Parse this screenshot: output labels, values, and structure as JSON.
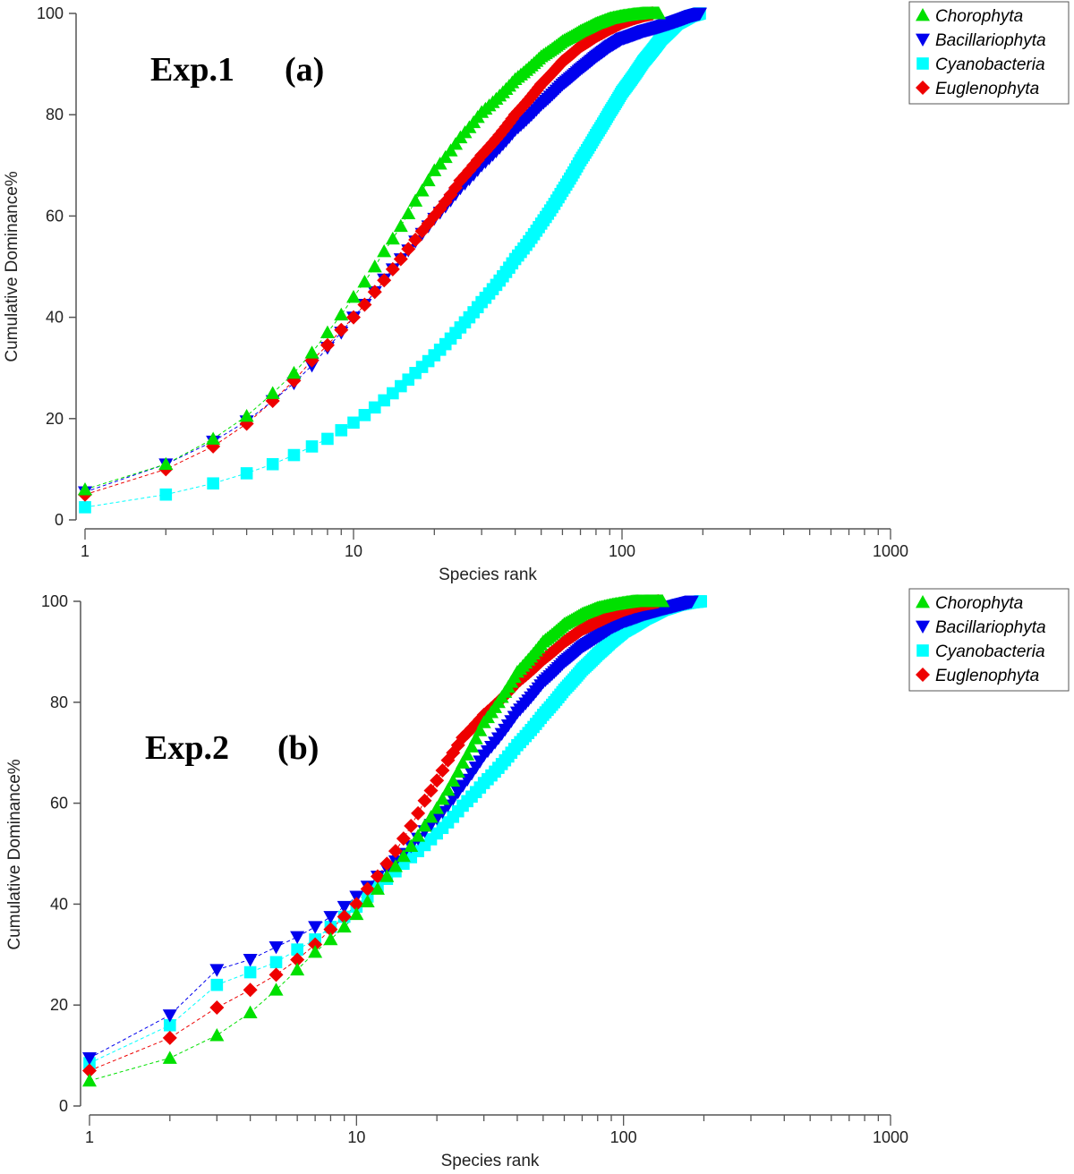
{
  "chart_data": [
    {
      "type": "scatter",
      "panel": "a",
      "label_exp": "Exp.1",
      "label_panel": "(a)",
      "xlabel": "Species rank",
      "ylabel": "Cumulative Dominance%",
      "xscale": "log",
      "xlim": [
        1,
        1000
      ],
      "ylim": [
        0,
        100
      ],
      "xticks": [
        "1",
        "10",
        "100",
        "1000"
      ],
      "yticks": [
        "0",
        "20",
        "40",
        "60",
        "80",
        "100"
      ],
      "legend_position": "top-right",
      "series": [
        {
          "name": "Chorophyta",
          "color": "#00e000",
          "marker": "triangle-up",
          "x": [
            1,
            2,
            3,
            4,
            5,
            6,
            7,
            8,
            9,
            10,
            11,
            12,
            13,
            14,
            15,
            16,
            17,
            18,
            19,
            20,
            25,
            30,
            40,
            50,
            60,
            70,
            80,
            90,
            100,
            110,
            120,
            130,
            137
          ],
          "y": [
            6,
            11,
            16,
            20.5,
            25,
            29,
            33,
            37,
            40.5,
            44,
            47,
            50,
            53,
            55.5,
            58,
            60.5,
            63,
            65,
            67,
            69,
            75.5,
            80.5,
            87,
            91.5,
            94.5,
            96.5,
            98,
            99,
            99.5,
            99.8,
            100,
            100,
            100
          ]
        },
        {
          "name": "Bacillariophyta",
          "color": "#0000ee",
          "marker": "triangle-down",
          "x": [
            1,
            2,
            3,
            4,
            5,
            6,
            7,
            8,
            9,
            10,
            11,
            12,
            13,
            14,
            15,
            17,
            20,
            25,
            30,
            40,
            50,
            60,
            70,
            80,
            90,
            100,
            120,
            140,
            160,
            180,
            195
          ],
          "y": [
            5.5,
            11,
            15.5,
            19.5,
            23.5,
            27,
            30.5,
            34,
            37,
            40,
            42.5,
            45,
            47.5,
            49.5,
            51.5,
            55,
            59.5,
            65.5,
            70,
            77,
            82,
            86,
            89,
            91.5,
            93.5,
            95,
            96.5,
            97.5,
            98.5,
            99.5,
            100
          ]
        },
        {
          "name": "Cyanobacteria",
          "color": "#00ffff",
          "marker": "square",
          "x": [
            1,
            2,
            3,
            4,
            5,
            6,
            7,
            8,
            9,
            10,
            11,
            12,
            13,
            14,
            15,
            16,
            17,
            18,
            20,
            25,
            30,
            40,
            50,
            60,
            70,
            80,
            90,
            100,
            120,
            140,
            160,
            180,
            195
          ],
          "y": [
            2.5,
            5,
            7.2,
            9.2,
            11,
            12.8,
            14.5,
            16,
            17.7,
            19.2,
            20.7,
            22.2,
            23.6,
            25,
            26.4,
            27.7,
            29,
            30.2,
            32.5,
            38,
            43,
            51.5,
            58.5,
            65,
            71,
            76,
            80.5,
            84.5,
            90.5,
            95,
            98,
            99.5,
            100
          ]
        },
        {
          "name": "Euglenophyta",
          "color": "#ee0000",
          "marker": "diamond",
          "x": [
            1,
            2,
            3,
            4,
            5,
            6,
            7,
            8,
            9,
            10,
            11,
            12,
            13,
            14,
            15,
            16,
            17,
            18,
            20,
            25,
            30,
            40,
            50,
            60,
            70,
            80,
            90,
            100,
            110,
            120,
            130
          ],
          "y": [
            5,
            10,
            14.5,
            19,
            23.5,
            27.5,
            31.5,
            34.5,
            37.5,
            40,
            42.5,
            45,
            47.3,
            49.5,
            51.5,
            53.5,
            55.3,
            57,
            60,
            67,
            72,
            80,
            86,
            90.5,
            93.5,
            95.5,
            97,
            98.2,
            99,
            99.6,
            100
          ]
        }
      ]
    },
    {
      "type": "scatter",
      "panel": "b",
      "label_exp": "Exp.2",
      "label_panel": "(b)",
      "xlabel": "Species rank",
      "ylabel": "Cumulative Dominance%",
      "xscale": "log",
      "xlim": [
        1,
        1000
      ],
      "ylim": [
        0,
        100
      ],
      "xticks": [
        "1",
        "10",
        "100",
        "1000"
      ],
      "yticks": [
        "0",
        "20",
        "40",
        "60",
        "80",
        "100"
      ],
      "legend_position": "top-right",
      "series": [
        {
          "name": "Chorophyta",
          "color": "#00e000",
          "marker": "triangle-up",
          "x": [
            1,
            2,
            3,
            4,
            5,
            6,
            7,
            8,
            9,
            10,
            11,
            12,
            13,
            14,
            15,
            16,
            17,
            18,
            20,
            25,
            30,
            40,
            50,
            60,
            70,
            80,
            90,
            100,
            110,
            120,
            130,
            140
          ],
          "y": [
            5,
            9.5,
            14,
            18.5,
            23,
            27,
            30.5,
            33,
            35.5,
            38,
            40.5,
            43,
            45.5,
            47.5,
            49.5,
            51.5,
            53.5,
            55.5,
            59,
            68,
            76,
            86,
            92,
            95.5,
            97.5,
            98.7,
            99.3,
            99.7,
            100,
            100,
            100,
            100
          ]
        },
        {
          "name": "Bacillariophyta",
          "color": "#0000ee",
          "marker": "triangle-down",
          "x": [
            1,
            2,
            3,
            4,
            5,
            6,
            7,
            8,
            9,
            10,
            11,
            12,
            13,
            14,
            15,
            16,
            17,
            18,
            20,
            25,
            30,
            40,
            50,
            60,
            70,
            80,
            90,
            100,
            120,
            140,
            160,
            180
          ],
          "y": [
            9.5,
            18,
            27,
            29,
            31.5,
            33.5,
            35.5,
            37.5,
            39.5,
            41.5,
            43.5,
            45.5,
            47,
            48.5,
            50,
            51.5,
            53,
            54.5,
            57,
            63.5,
            69.5,
            78,
            84,
            88,
            91,
            93,
            94.8,
            96,
            97.5,
            98.5,
            99.3,
            100
          ]
        },
        {
          "name": "Cyanobacteria",
          "color": "#00ffff",
          "marker": "square",
          "x": [
            1,
            2,
            3,
            4,
            5,
            6,
            7,
            8,
            9,
            10,
            11,
            12,
            13,
            14,
            15,
            16,
            17,
            18,
            20,
            25,
            30,
            40,
            50,
            60,
            70,
            80,
            90,
            100,
            120,
            140,
            160,
            180,
            195
          ],
          "y": [
            8.5,
            16,
            24,
            26.5,
            28.5,
            31,
            33,
            35.5,
            37.5,
            39.5,
            41.5,
            43.5,
            45,
            46.5,
            48,
            49.3,
            50.5,
            51.7,
            54,
            59.5,
            64,
            71.5,
            77.5,
            82.5,
            86.5,
            89.5,
            92,
            94,
            96.5,
            98.3,
            99.3,
            99.8,
            100
          ]
        },
        {
          "name": "Euglenophyta",
          "color": "#ee0000",
          "marker": "diamond",
          "x": [
            1,
            2,
            3,
            4,
            5,
            6,
            7,
            8,
            9,
            10,
            11,
            12,
            13,
            14,
            15,
            16,
            17,
            18,
            19,
            20,
            22,
            25,
            30,
            40,
            50,
            60,
            70,
            80,
            90,
            100,
            110,
            120,
            130,
            135
          ],
          "y": [
            7,
            13.5,
            19.5,
            23,
            26,
            29,
            32,
            35,
            37.5,
            40,
            43,
            45.5,
            48,
            50.5,
            53,
            55.5,
            58,
            60.5,
            62.5,
            64.5,
            68.5,
            73,
            77.5,
            84,
            88.5,
            92,
            94.5,
            96,
            97.3,
            98.3,
            99,
            99.5,
            99.8,
            100
          ]
        }
      ]
    }
  ]
}
